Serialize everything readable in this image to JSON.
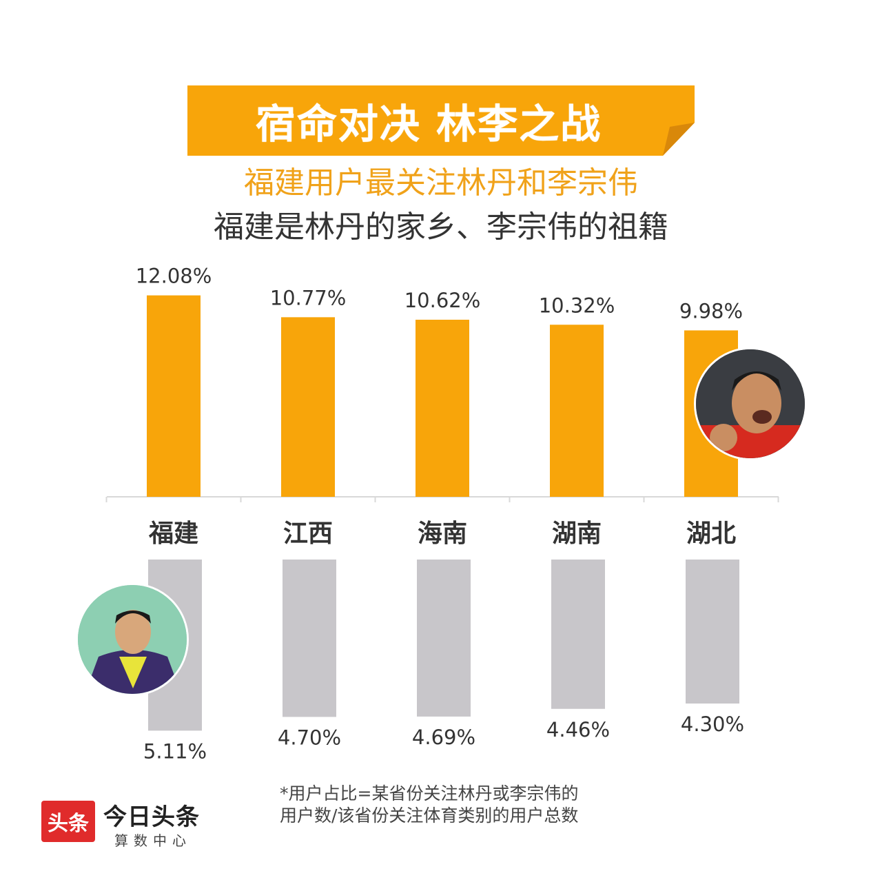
{
  "title": "宿命对决 林李之战",
  "subtitle_1": "福建用户最关注林丹和李宗伟",
  "subtitle_2": "福建是林丹的家乡、李宗伟的祖籍",
  "colors": {
    "accent": "#f8a50a",
    "gray": "#c8c6ca"
  },
  "chart_data": {
    "type": "bar",
    "categories": [
      "福建",
      "江西",
      "海南",
      "湖南",
      "湖北"
    ],
    "series": [
      {
        "values": [
          12.08,
          10.77,
          10.62,
          10.32,
          9.98
        ],
        "labels": [
          "12.08%",
          "10.77%",
          "10.62%",
          "10.32%",
          "9.98%"
        ],
        "color": "#f8a50a",
        "direction": "up"
      },
      {
        "values": [
          5.11,
          4.7,
          4.69,
          4.46,
          4.3
        ],
        "labels": [
          "5.11%",
          "4.70%",
          "4.69%",
          "4.46%",
          "4.30%"
        ],
        "color": "#c8c6ca",
        "direction": "down"
      }
    ],
    "title": "",
    "xlabel": "",
    "ylabel": "",
    "grid": false
  },
  "footnote_line1": "*用户占比=某省份关注林丹或李宗伟的",
  "footnote_line2": "用户数/该省份关注体育类别的用户总数",
  "logo": {
    "badge": "头条",
    "name": "今日头条",
    "sub": "算数中心"
  }
}
